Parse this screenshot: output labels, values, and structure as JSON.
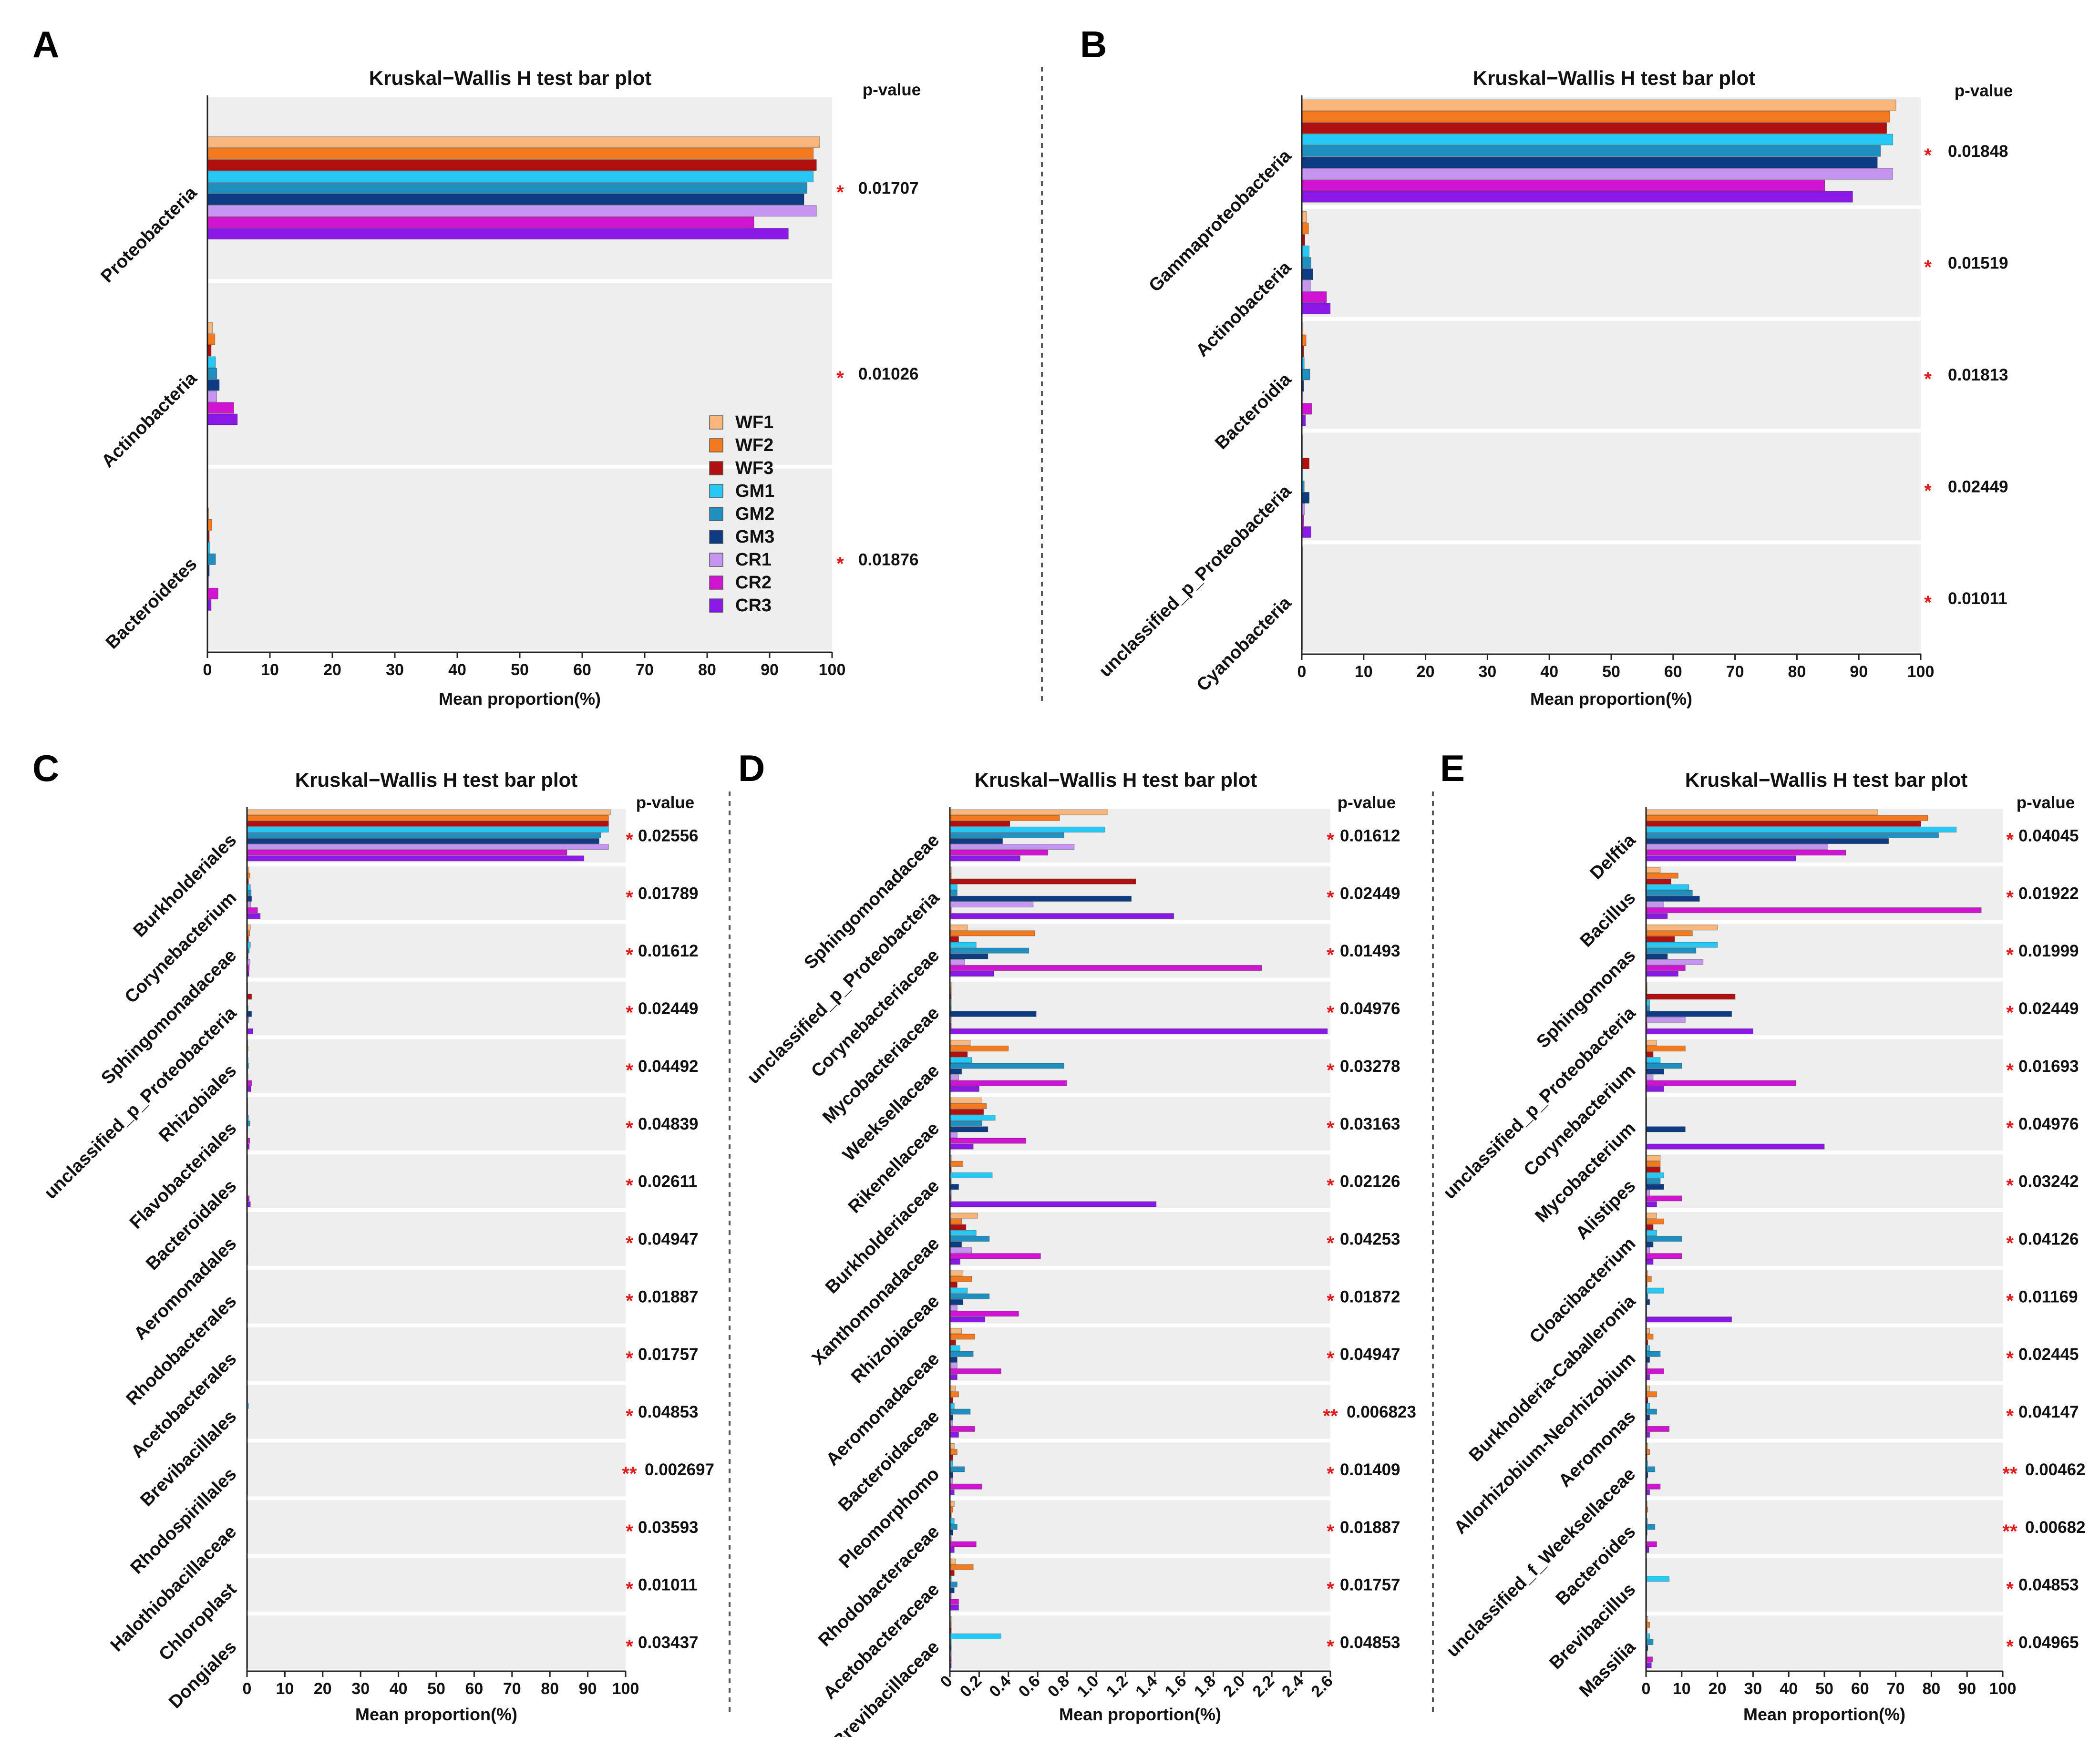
{
  "figure": {
    "divider_color": "#555555",
    "band_color": "#eeeeee",
    "star_color": "#e31a1c"
  },
  "legend": {
    "items": [
      {
        "name": "WF1",
        "color": "#f9b67a"
      },
      {
        "name": "WF2",
        "color": "#f47a1f"
      },
      {
        "name": "WF3",
        "color": "#b01010"
      },
      {
        "name": "GM1",
        "color": "#28c8f4"
      },
      {
        "name": "GM2",
        "color": "#1f8fbf"
      },
      {
        "name": "GM3",
        "color": "#0d3b84"
      },
      {
        "name": "CR1",
        "color": "#c695f2"
      },
      {
        "name": "CR2",
        "color": "#d114d1"
      },
      {
        "name": "CR3",
        "color": "#8a18e6"
      }
    ]
  },
  "chart_data": [
    {
      "panel": "A",
      "type": "bar",
      "orientation": "horizontal",
      "title": "Kruskal−Wallis H test bar plot",
      "xlabel": "Mean proportion(%)",
      "pvalue_header": "p-value",
      "xlim": [
        0,
        100
      ],
      "xticks": [
        "0",
        "10",
        "20",
        "30",
        "40",
        "50",
        "60",
        "70",
        "80",
        "90",
        "100"
      ],
      "series_names": [
        "WF1",
        "WF2",
        "WF3",
        "GM1",
        "GM2",
        "GM3",
        "CR1",
        "CR2",
        "CR3"
      ],
      "categories": [
        {
          "label": "Proteobacteria",
          "stars": "*",
          "p": "0.01707",
          "values": [
            98,
            97,
            97.5,
            97,
            96,
            95.5,
            97.5,
            87.5,
            93
          ]
        },
        {
          "label": "Actinobacteria",
          "stars": "*",
          "p": "0.01026",
          "values": [
            0.8,
            1.2,
            0.6,
            1.3,
            1.5,
            1.9,
            1.5,
            4.2,
            4.8
          ]
        },
        {
          "label": "Bacteroidetes",
          "stars": "*",
          "p": "0.01876",
          "values": [
            0.2,
            0.7,
            0.3,
            0.4,
            1.3,
            0.3,
            0.2,
            1.7,
            0.6
          ]
        }
      ]
    },
    {
      "panel": "B",
      "type": "bar",
      "orientation": "horizontal",
      "title": "Kruskal−Wallis H test bar plot",
      "xlabel": "Mean proportion(%)",
      "pvalue_header": "p-value",
      "xlim": [
        0,
        100
      ],
      "xticks": [
        "0",
        "10",
        "20",
        "30",
        "40",
        "50",
        "60",
        "70",
        "80",
        "90",
        "100"
      ],
      "series_names": [
        "WF1",
        "WF2",
        "WF3",
        "GM1",
        "GM2",
        "GM3",
        "CR1",
        "CR2",
        "CR3"
      ],
      "categories": [
        {
          "label": "Gammaproteobacteria",
          "stars": "*",
          "p": "0.01848",
          "values": [
            96,
            95,
            94.5,
            95.5,
            93.5,
            93,
            95.5,
            84.5,
            89
          ]
        },
        {
          "label": "Actinobacteria",
          "stars": "*",
          "p": "0.01519",
          "values": [
            0.8,
            1.1,
            0.5,
            1.2,
            1.5,
            1.8,
            1.4,
            4,
            4.6
          ]
        },
        {
          "label": "Bacteroidia",
          "stars": "*",
          "p": "0.01813",
          "values": [
            0.2,
            0.7,
            0.3,
            0.4,
            1.3,
            0.3,
            0.2,
            1.6,
            0.6
          ]
        },
        {
          "label": "unclassified_p_Proteobacteria",
          "stars": "*",
          "p": "0.02449",
          "values": [
            0.1,
            0.1,
            1.2,
            0.2,
            0.4,
            1.2,
            0.5,
            0.3,
            1.5
          ]
        },
        {
          "label": "Cyanobacteria",
          "stars": "*",
          "p": "0.01011",
          "values": [
            0.05,
            0.05,
            0.05,
            0.05,
            0.05,
            0.05,
            0.05,
            0.05,
            0.05
          ]
        }
      ]
    },
    {
      "panel": "C",
      "type": "bar",
      "orientation": "horizontal",
      "title": "Kruskal−Wallis H test bar plot",
      "xlabel": "Mean proportion(%)",
      "pvalue_header": "p-value",
      "xlim": [
        0,
        100
      ],
      "xticks": [
        "0",
        "10",
        "20",
        "30",
        "40",
        "50",
        "60",
        "70",
        "80",
        "90",
        "100"
      ],
      "series_names": [
        "WF1",
        "WF2",
        "WF3",
        "GM1",
        "GM2",
        "GM3",
        "CR1",
        "CR2",
        "CR3"
      ],
      "categories": [
        {
          "label": "Burkholderiales",
          "stars": "*",
          "p": "0.02556",
          "values": [
            96,
            95.5,
            95.5,
            95.5,
            93.5,
            93,
            95.5,
            84.5,
            89
          ]
        },
        {
          "label": "Corynebacterium",
          "stars": "*",
          "p": "0.01789",
          "values": [
            0.5,
            0.8,
            0.4,
            0.9,
            1.1,
            1.2,
            1,
            2.8,
            3.5
          ]
        },
        {
          "label": "Sphingomonadaceae",
          "stars": "*",
          "p": "0.01612",
          "values": [
            0.9,
            0.7,
            0.4,
            0.9,
            0.6,
            0.3,
            0.8,
            0.6,
            0.5
          ]
        },
        {
          "label": "unclassified_p_Proteobacteria",
          "stars": "*",
          "p": "0.02449",
          "values": [
            0.05,
            0.05,
            1.2,
            0.1,
            0.3,
            1.2,
            0.5,
            0.05,
            1.5
          ]
        },
        {
          "label": "Rhizobiales",
          "stars": "*",
          "p": "0.04492",
          "values": [
            0.2,
            0.3,
            0.2,
            0.3,
            0.4,
            0.2,
            0.3,
            1.2,
            1
          ]
        },
        {
          "label": "Flavobacteriales",
          "stars": "*",
          "p": "0.04839",
          "values": [
            0.1,
            0.2,
            0.2,
            0.4,
            0.8,
            0.2,
            0.1,
            0.7,
            0.6
          ]
        },
        {
          "label": "Bacteroidales",
          "stars": "*",
          "p": "0.02611",
          "values": [
            0.05,
            0.1,
            0.05,
            0.1,
            0.2,
            0.1,
            0.05,
            0.6,
            0.9
          ]
        },
        {
          "label": "Aeromonadales",
          "stars": "*",
          "p": "0.04947",
          "values": [
            0.05,
            0.1,
            0.05,
            0.05,
            0.1,
            0.05,
            0.05,
            0.2,
            0.2
          ]
        },
        {
          "label": "Rhodobacterales",
          "stars": "*",
          "p": "0.01887",
          "values": [
            0.05,
            0.1,
            0.05,
            0.05,
            0.1,
            0.05,
            0.05,
            0.1,
            0.2
          ]
        },
        {
          "label": "Acetobacterales",
          "stars": "*",
          "p": "0.01757",
          "values": [
            0.05,
            0.1,
            0.05,
            0.05,
            0.05,
            0.05,
            0.05,
            0.05,
            0.1
          ]
        },
        {
          "label": "Brevibacillales",
          "stars": "*",
          "p": "0.04853",
          "values": [
            0.05,
            0.05,
            0.05,
            0.4,
            0.05,
            0.05,
            0.05,
            0.05,
            0.05
          ]
        },
        {
          "label": "Rhodospirillales",
          "stars": "**",
          "p": "0.002697",
          "values": [
            0.05,
            0.05,
            0.05,
            0.05,
            0.05,
            0.05,
            0.05,
            0.05,
            0.05
          ]
        },
        {
          "label": "Halothiobacillaceae",
          "stars": "*",
          "p": "0.03593",
          "values": [
            0.05,
            0.05,
            0.05,
            0.05,
            0.05,
            0.05,
            0.05,
            0.05,
            0.05
          ]
        },
        {
          "label": "Chloroplast",
          "stars": "*",
          "p": "0.01011",
          "values": [
            0.05,
            0.05,
            0.05,
            0.05,
            0.05,
            0.05,
            0.05,
            0.05,
            0.05
          ]
        },
        {
          "label": "Dongiales",
          "stars": "*",
          "p": "0.03437",
          "values": [
            0.05,
            0.05,
            0.05,
            0.05,
            0.05,
            0.05,
            0.05,
            0.05,
            0.05
          ]
        }
      ]
    },
    {
      "panel": "D",
      "type": "bar",
      "orientation": "horizontal",
      "title": "Kruskal−Wallis H test bar plot",
      "xlabel": "Mean proportion(%)",
      "pvalue_header": "p-value",
      "xlim": [
        0,
        2.6
      ],
      "xticks": [
        "0",
        "0.2",
        "0.4",
        "0.6",
        "0.8",
        "1.0",
        "1.2",
        "1.4",
        "1.6",
        "1.8",
        "2.0",
        "2.2",
        "2.4",
        "2.6"
      ],
      "series_names": [
        "WF1",
        "WF2",
        "WF3",
        "GM1",
        "GM2",
        "GM3",
        "CR1",
        "CR2",
        "CR3"
      ],
      "categories": [
        {
          "label": "Sphingomonadaceae",
          "stars": "*",
          "p": "0.01612",
          "values": [
            1.08,
            0.75,
            0.41,
            1.06,
            0.78,
            0.36,
            0.85,
            0.67,
            0.48
          ]
        },
        {
          "label": "unclassified_p_Proteobacteria",
          "stars": "*",
          "p": "0.02449",
          "values": [
            0.01,
            0.01,
            1.27,
            0.05,
            0.05,
            1.24,
            0.57,
            0.01,
            1.53
          ]
        },
        {
          "label": "Corynebacteriaceae",
          "stars": "*",
          "p": "0.01493",
          "values": [
            0.12,
            0.58,
            0.06,
            0.18,
            0.54,
            0.26,
            0.1,
            2.13,
            0.3
          ]
        },
        {
          "label": "Mycobacteriaceae",
          "stars": "*",
          "p": "0.04976",
          "values": [
            0.01,
            0.01,
            0.01,
            0.01,
            0.01,
            0.59,
            0.01,
            0.01,
            2.58
          ]
        },
        {
          "label": "Weeksellaceae",
          "stars": "*",
          "p": "0.03278",
          "values": [
            0.14,
            0.4,
            0.12,
            0.15,
            0.78,
            0.08,
            0.06,
            0.8,
            0.2
          ]
        },
        {
          "label": "Rikenellaceae",
          "stars": "*",
          "p": "0.03163",
          "values": [
            0.22,
            0.25,
            0.23,
            0.31,
            0.22,
            0.26,
            0.05,
            0.52,
            0.16
          ]
        },
        {
          "label": "Burkholderiaceae",
          "stars": "*",
          "p": "0.02126",
          "values": [
            0.01,
            0.09,
            0.01,
            0.29,
            0.01,
            0.06,
            0.01,
            0.01,
            1.41
          ]
        },
        {
          "label": "Xanthomonadaceae",
          "stars": "*",
          "p": "0.04253",
          "values": [
            0.19,
            0.08,
            0.11,
            0.18,
            0.27,
            0.08,
            0.15,
            0.62,
            0.07
          ]
        },
        {
          "label": "Rhizobiaceae",
          "stars": "*",
          "p": "0.01872",
          "values": [
            0.09,
            0.15,
            0.05,
            0.12,
            0.27,
            0.09,
            0.05,
            0.47,
            0.24
          ]
        },
        {
          "label": "Aeromonadaceae",
          "stars": "*",
          "p": "0.04947",
          "values": [
            0.08,
            0.17,
            0.04,
            0.07,
            0.16,
            0.05,
            0.05,
            0.35,
            0.05
          ]
        },
        {
          "label": "Bacteroidaceae",
          "stars": "**",
          "p": "0.006823",
          "values": [
            0.04,
            0.06,
            0.02,
            0.03,
            0.14,
            0.02,
            0.02,
            0.17,
            0.06
          ]
        },
        {
          "label": "Pleomorphomo",
          "stars": "*",
          "p": "0.01409",
          "values": [
            0.03,
            0.05,
            0.02,
            0.02,
            0.1,
            0.02,
            0.02,
            0.22,
            0.03
          ]
        },
        {
          "label": "Rhodobacteraceae",
          "stars": "*",
          "p": "0.01887",
          "values": [
            0.03,
            0.02,
            0.01,
            0.03,
            0.05,
            0.02,
            0.01,
            0.18,
            0.03
          ]
        },
        {
          "label": "Acetobacteraceae",
          "stars": "*",
          "p": "0.01757",
          "values": [
            0.04,
            0.16,
            0.03,
            0.01,
            0.05,
            0.03,
            0.01,
            0.06,
            0.06
          ]
        },
        {
          "label": "Brevibacillaceae",
          "stars": "*",
          "p": "0.04853",
          "values": [
            0.01,
            0.01,
            0.01,
            0.35,
            0.01,
            0.01,
            0.01,
            0.01,
            0.01
          ]
        }
      ]
    },
    {
      "panel": "E",
      "type": "bar",
      "orientation": "horizontal",
      "title": "Kruskal−Wallis H test bar plot",
      "xlabel": "Mean proportion(%)",
      "pvalue_header": "p-value",
      "xlim": [
        0,
        100
      ],
      "xticks": [
        "0",
        "10",
        "20",
        "30",
        "40",
        "50",
        "60",
        "70",
        "80",
        "90",
        "100"
      ],
      "series_names": [
        "WF1",
        "WF2",
        "WF3",
        "GM1",
        "GM2",
        "GM3",
        "CR1",
        "CR2",
        "CR3"
      ],
      "categories": [
        {
          "label": "Delftia",
          "stars": "*",
          "p": "0.04045",
          "values": [
            65,
            79,
            77,
            87,
            82,
            68,
            51,
            56,
            42
          ]
        },
        {
          "label": "Bacillus",
          "stars": "*",
          "p": "0.01922",
          "values": [
            4,
            9,
            7,
            12,
            13,
            15,
            5,
            94,
            6
          ]
        },
        {
          "label": "Sphingomonas",
          "stars": "*",
          "p": "0.01999",
          "values": [
            20,
            13,
            8,
            20,
            14,
            6,
            16,
            11,
            9
          ]
        },
        {
          "label": "unclassified_p_Proteobacteria",
          "stars": "*",
          "p": "0.02449",
          "values": [
            0.3,
            0.3,
            25,
            1,
            1,
            24,
            11,
            0.3,
            30
          ]
        },
        {
          "label": "Corynebacterium",
          "stars": "*",
          "p": "0.01693",
          "values": [
            3,
            11,
            2,
            4,
            10,
            5,
            2,
            42,
            5
          ]
        },
        {
          "label": "Mycobacterium",
          "stars": "*",
          "p": "0.04976",
          "values": [
            0.2,
            0.2,
            0.2,
            0.2,
            0.2,
            11,
            0.2,
            0.2,
            50
          ]
        },
        {
          "label": "Alistipes",
          "stars": "*",
          "p": "0.03242",
          "values": [
            4,
            4,
            4,
            5,
            4,
            5,
            1,
            10,
            3
          ]
        },
        {
          "label": "Cloacibacterium",
          "stars": "*",
          "p": "0.04126",
          "values": [
            3,
            5,
            2,
            3,
            10,
            2,
            1,
            10,
            2
          ]
        },
        {
          "label": "Burkholderia-Caballeronia",
          "stars": "*",
          "p": "0.01169",
          "values": [
            0.5,
            1.5,
            0.3,
            5,
            0.5,
            1,
            0.2,
            0.2,
            24
          ]
        },
        {
          "label": "Allorhizobium-Neorhizobium",
          "stars": "*",
          "p": "0.02445",
          "values": [
            1,
            2,
            0.5,
            1,
            4,
            1,
            0.5,
            5,
            1
          ]
        },
        {
          "label": "Aeromonas",
          "stars": "*",
          "p": "0.04147",
          "values": [
            1,
            3,
            0.5,
            1,
            3,
            1,
            0.5,
            6.5,
            1
          ]
        },
        {
          "label": "unclassified_f_Weeksellaceae",
          "stars": "**",
          "p": "0.00462",
          "values": [
            0.5,
            1,
            0.3,
            0.5,
            2.5,
            0.5,
            0.3,
            4,
            1
          ]
        },
        {
          "label": "Bacteroides",
          "stars": "**",
          "p": "0.00682",
          "values": [
            0.3,
            0.5,
            0.2,
            0.4,
            2.5,
            0.3,
            0.2,
            3,
            0.8
          ]
        },
        {
          "label": "Brevibacillus",
          "stars": "*",
          "p": "0.04853",
          "values": [
            0.2,
            0.2,
            0.2,
            6.5,
            0.2,
            0.2,
            0.2,
            0.2,
            0.2
          ]
        },
        {
          "label": "Massilia",
          "stars": "*",
          "p": "0.04965",
          "values": [
            0.5,
            1,
            0.3,
            1,
            2,
            0.5,
            0.3,
            1.8,
            1.5
          ]
        }
      ]
    }
  ]
}
